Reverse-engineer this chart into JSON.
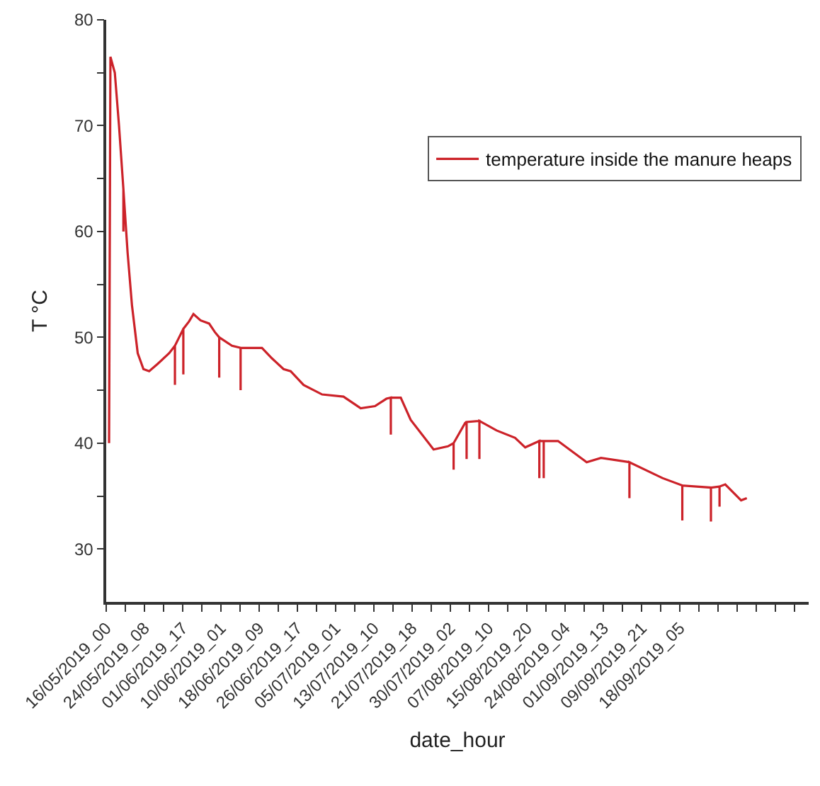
{
  "chart_data": {
    "type": "line",
    "xlabel": "date_hour",
    "ylabel": "T °C",
    "x": [
      "2019-05-16T15:00",
      "2019-05-16T22:00",
      "2019-05-17T21:00",
      "2019-05-18T19:00",
      "2019-05-19T18:00",
      "2019-05-19T18:00",
      "2019-05-19T18:00",
      "2019-05-20T16:00",
      "2019-05-21T15:00",
      "2019-05-22T21:00",
      "2019-05-24T03:00",
      "2019-05-25T09:00",
      "2019-05-27T06:00",
      "2019-05-29T18:00",
      "2019-05-31T00:00",
      "2019-05-31T00:00",
      "2019-05-31T00:00",
      "2019-06-01T20:00",
      "2019-06-01T20:00",
      "2019-06-01T20:00",
      "2019-06-03T02:00",
      "2019-06-04T01:00",
      "2019-06-05T14:00",
      "2019-06-07T11:00",
      "2019-06-08T17:00",
      "2019-06-09T16:00",
      "2019-06-09T16:00",
      "2019-06-09T16:00",
      "2019-06-12T11:00",
      "2019-06-14T08:00",
      "2019-06-14T08:00",
      "2019-06-14T08:00",
      "2019-06-19T00:00",
      "2019-06-21T05:00",
      "2019-06-23T17:00",
      "2019-06-25T06:00",
      "2019-06-28T02:00",
      "2019-07-02T03:00",
      "2019-07-06T19:00",
      "2019-07-10T13:00",
      "2019-07-13T16:00",
      "2019-07-16T04:00",
      "2019-07-17T03:00",
      "2019-07-17T03:00",
      "2019-07-17T03:00",
      "2019-07-19T07:00",
      "2019-07-21T11:00",
      "2019-07-26T11:00",
      "2019-07-29T14:00",
      "2019-07-30T20:00",
      "2019-07-30T20:00",
      "2019-07-30T20:00",
      "2019-08-02T08:00",
      "2019-08-02T16:00",
      "2019-08-02T16:00",
      "2019-08-02T16:00",
      "2019-08-05T11:00",
      "2019-08-05T11:00",
      "2019-08-05T11:00",
      "2019-08-09T05:00",
      "2019-08-13T06:00",
      "2019-08-15T11:00",
      "2019-08-18T13:00",
      "2019-08-18T13:00",
      "2019-08-18T13:00",
      "2019-08-19T12:00",
      "2019-08-19T12:00",
      "2019-08-19T12:00",
      "2019-08-22T15:00",
      "2019-08-28T21:00",
      "2019-09-01T00:00",
      "2019-09-07T05:00",
      "2019-09-07T05:00",
      "2019-09-07T05:00",
      "2019-09-14T10:00",
      "2019-09-18T18:00",
      "2019-09-18T18:00",
      "2019-09-18T18:00",
      "2019-09-25T00:00",
      "2019-09-25T00:00",
      "2019-09-25T00:00",
      "2019-09-26T21:00",
      "2019-09-26T21:00",
      "2019-09-26T21:00",
      "2019-09-28T03:00",
      "2019-10-01T14:00",
      "2019-10-02T20:00"
    ],
    "series": [
      {
        "name": "temperature inside the manure heaps",
        "color": "#cc2229",
        "values": [
          40,
          76.5,
          75,
          70,
          64,
          60,
          64,
          58,
          53,
          48.5,
          47,
          46.8,
          47.5,
          48.5,
          49.2,
          45.5,
          49.2,
          50.8,
          46.5,
          50.8,
          51.5,
          52.2,
          51.6,
          51.3,
          50.5,
          50,
          46.2,
          50,
          49.2,
          49,
          45,
          49,
          49,
          48,
          47,
          46.8,
          45.5,
          44.6,
          44.4,
          43.3,
          43.5,
          44.2,
          44.3,
          40.8,
          44.3,
          44.3,
          42.2,
          39.4,
          39.7,
          40,
          37.5,
          40,
          41.9,
          42,
          38.5,
          42,
          42.1,
          38.5,
          42.1,
          41.2,
          40.5,
          39.6,
          40.2,
          36.7,
          40.2,
          40.2,
          36.7,
          40.2,
          40.2,
          38.2,
          38.6,
          38.2,
          34.8,
          38.2,
          36.7,
          36,
          32.7,
          36,
          35.8,
          32.6,
          35.8,
          35.9,
          34,
          35.9,
          36.1,
          34.6,
          34.8
        ]
      }
    ],
    "xlim": [
      "2019-05-16T00:00",
      "2019-10-16T08:00"
    ],
    "xticks": [
      {
        "value": "2019-05-16T00:00",
        "label": "16/05/2019_00"
      },
      {
        "value": "2019-05-20T04:00",
        "label": null
      },
      {
        "value": "2019-05-24T08:00",
        "label": "24/05/2019_08"
      },
      {
        "value": "2019-05-28T12:00",
        "label": null
      },
      {
        "value": "2019-06-01T17:00",
        "label": "01/06/2019_17"
      },
      {
        "value": "2019-06-05T21:00",
        "label": null
      },
      {
        "value": "2019-06-10T01:00",
        "label": "10/06/2019_01"
      },
      {
        "value": "2019-06-14T05:00",
        "label": null
      },
      {
        "value": "2019-06-18T09:00",
        "label": "18/06/2019_09"
      },
      {
        "value": "2019-06-22T13:00",
        "label": null
      },
      {
        "value": "2019-06-26T17:00",
        "label": "26/06/2019_17"
      },
      {
        "value": "2019-06-30T21:00",
        "label": null
      },
      {
        "value": "2019-07-05T01:00",
        "label": "05/07/2019_01"
      },
      {
        "value": "2019-07-09T05:00",
        "label": null
      },
      {
        "value": "2019-07-13T10:00",
        "label": "13/07/2019_10"
      },
      {
        "value": "2019-07-17T14:00",
        "label": null
      },
      {
        "value": "2019-07-21T18:00",
        "label": "21/07/2019_18"
      },
      {
        "value": "2019-07-25T22:00",
        "label": null
      },
      {
        "value": "2019-07-30T02:00",
        "label": "30/07/2019_02"
      },
      {
        "value": "2019-08-03T06:00",
        "label": null
      },
      {
        "value": "2019-08-07T10:00",
        "label": "07/08/2019_10"
      },
      {
        "value": "2019-08-11T14:00",
        "label": null
      },
      {
        "value": "2019-08-15T20:00",
        "label": "15/08/2019_20"
      },
      {
        "value": "2019-08-20T00:00",
        "label": null
      },
      {
        "value": "2019-08-24T04:00",
        "label": "24/08/2019_04"
      },
      {
        "value": "2019-08-28T08:00",
        "label": null
      },
      {
        "value": "2019-09-01T13:00",
        "label": "01/09/2019_13"
      },
      {
        "value": "2019-09-05T17:00",
        "label": null
      },
      {
        "value": "2019-09-09T21:00",
        "label": "09/09/2019_21"
      },
      {
        "value": "2019-09-14T01:00",
        "label": null
      },
      {
        "value": "2019-09-18T05:00",
        "label": "18/09/2019_05"
      },
      {
        "value": "2019-09-22T09:00",
        "label": null
      },
      {
        "value": "2019-09-26T13:00",
        "label": null
      },
      {
        "value": "2019-09-30T17:00",
        "label": null
      },
      {
        "value": "2019-10-04T21:00",
        "label": null
      },
      {
        "value": "2019-10-09T01:00",
        "label": null
      },
      {
        "value": "2019-10-13T05:00",
        "label": null
      }
    ],
    "ylim": [
      25,
      80
    ],
    "yticks": [
      30,
      {
        "value": 35,
        "label": null
      },
      40,
      {
        "value": 45,
        "label": null
      },
      50,
      {
        "value": 55,
        "label": null
      },
      60,
      {
        "value": 65,
        "label": null
      },
      70,
      {
        "value": 75,
        "label": null
      },
      80
    ],
    "legend": "top right",
    "marker": "none",
    "line_style": "solid"
  }
}
